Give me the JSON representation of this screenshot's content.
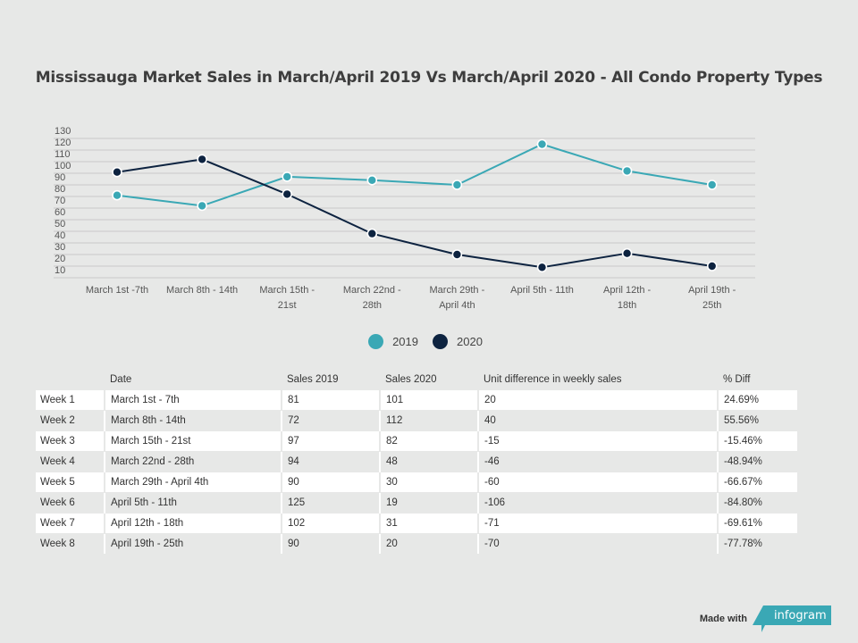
{
  "title": "Mississauga Market Sales in March/April 2019 Vs March/April 2020 - All Condo Property Types",
  "colors": {
    "series_2019": "#3aa8b5",
    "series_2020": "#0d2340",
    "background": "#e7e8e7",
    "grid": "#c9c9c9"
  },
  "chart_data": {
    "type": "line",
    "title": "Mississauga Market Sales in March/April 2019 Vs March/April 2020 - All Condo Property Types",
    "categories": [
      "March 1st -7th",
      "March 8th - 14th",
      "March 15th - 21st",
      "March 22nd - 28th",
      "March 29th - April 4th",
      "April 5th - 11th",
      "April 12th - 18th",
      "April 19th - 25th"
    ],
    "series": [
      {
        "name": "2019",
        "values": [
          81,
          72,
          97,
          94,
          90,
          125,
          102,
          90
        ]
      },
      {
        "name": "2020",
        "values": [
          101,
          112,
          82,
          48,
          30,
          19,
          31,
          20
        ]
      }
    ],
    "yticks": [
      130,
      120,
      110,
      100,
      90,
      80,
      70,
      60,
      50,
      40,
      30,
      20,
      10
    ],
    "ylim": [
      10,
      130
    ],
    "grid": true,
    "legend": "bottom-center",
    "xlabel": "",
    "ylabel": ""
  },
  "legend": {
    "items": [
      "2019",
      "2020"
    ]
  },
  "table": {
    "headers": [
      "",
      "Date",
      "Sales 2019",
      "Sales 2020",
      "Unit difference in weekly sales",
      "% Diff"
    ],
    "rows": [
      [
        "Week 1",
        "March 1st - 7th",
        "81",
        "101",
        "20",
        "24.69%"
      ],
      [
        "Week 2",
        "March 8th - 14th",
        "72",
        "112",
        "40",
        "55.56%"
      ],
      [
        "Week 3",
        "March 15th - 21st",
        "97",
        "82",
        "-15",
        "-15.46%"
      ],
      [
        "Week 4",
        "March 22nd - 28th",
        "94",
        "48",
        "-46",
        "-48.94%"
      ],
      [
        "Week 5",
        "March 29th - April 4th",
        "90",
        "30",
        "-60",
        "-66.67%"
      ],
      [
        "Week 6",
        "April 5th - 11th",
        "125",
        "19",
        "-106",
        "-84.80%"
      ],
      [
        "Week 7",
        "April 12th - 18th",
        "102",
        "31",
        "-71",
        "-69.61%"
      ],
      [
        "Week 8",
        "April 19th - 25th",
        "90",
        "20",
        "-70",
        "-77.78%"
      ]
    ]
  },
  "footer": {
    "made_with": "Made with",
    "brand": "infogram"
  }
}
